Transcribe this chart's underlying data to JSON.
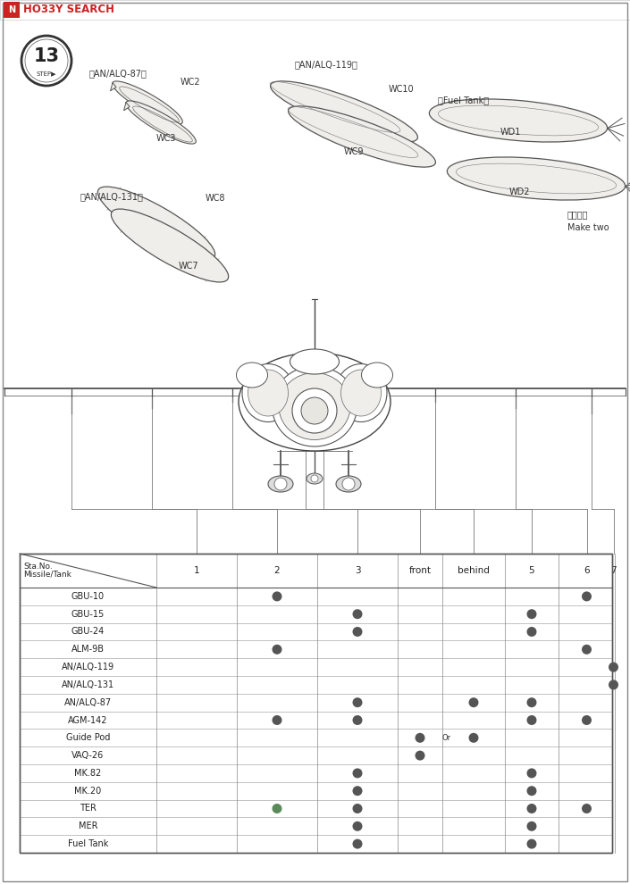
{
  "page_bg": "#ffffff",
  "border_color": "#555555",
  "dot_color": "#555555",
  "hobby_search_bg": "#cc2222",
  "step_number": "13",
  "table_header_row": [
    "Sta.No.",
    "1",
    "2",
    "3",
    "front",
    "behind",
    "5",
    "6",
    "7"
  ],
  "table_col0_label": "Missile/Tank",
  "table_rows": [
    {
      "name": "GBU-10",
      "dots": [
        0,
        1,
        0,
        0,
        0,
        0,
        1,
        0
      ]
    },
    {
      "name": "GBU-15",
      "dots": [
        0,
        0,
        1,
        0,
        0,
        1,
        0,
        0
      ]
    },
    {
      "name": "GBU-24",
      "dots": [
        0,
        0,
        1,
        0,
        0,
        1,
        0,
        0
      ]
    },
    {
      "name": "ALM-9B",
      "dots": [
        0,
        1,
        0,
        0,
        0,
        0,
        1,
        0
      ]
    },
    {
      "name": "AN/ALQ-119",
      "dots": [
        0,
        0,
        0,
        0,
        0,
        0,
        0,
        1
      ]
    },
    {
      "name": "AN/ALQ-131",
      "dots": [
        0,
        0,
        0,
        0,
        0,
        0,
        0,
        1
      ]
    },
    {
      "name": "AN/ALQ-87",
      "dots": [
        0,
        0,
        1,
        0,
        1,
        1,
        0,
        0
      ]
    },
    {
      "name": "AGM-142",
      "dots": [
        0,
        1,
        1,
        0,
        0,
        1,
        1,
        0
      ]
    },
    {
      "name": "Guide Pod",
      "dots": [
        0,
        0,
        0,
        1,
        1,
        0,
        0,
        0
      ],
      "special_or": true
    },
    {
      "name": "VAQ-26",
      "dots": [
        0,
        0,
        0,
        1,
        0,
        0,
        0,
        0
      ]
    },
    {
      "name": "MK.82",
      "dots": [
        0,
        0,
        1,
        0,
        0,
        1,
        0,
        0
      ]
    },
    {
      "name": "MK.20",
      "dots": [
        0,
        0,
        1,
        0,
        0,
        1,
        0,
        0
      ]
    },
    {
      "name": "TER",
      "dots": [
        0,
        1,
        1,
        0,
        0,
        1,
        1,
        0
      ],
      "green_col": 1
    },
    {
      "name": "MER",
      "dots": [
        0,
        0,
        1,
        0,
        0,
        1,
        0,
        0
      ]
    },
    {
      "name": "Fuel Tank",
      "dots": [
        0,
        0,
        1,
        0,
        0,
        1,
        0,
        0
      ]
    }
  ]
}
